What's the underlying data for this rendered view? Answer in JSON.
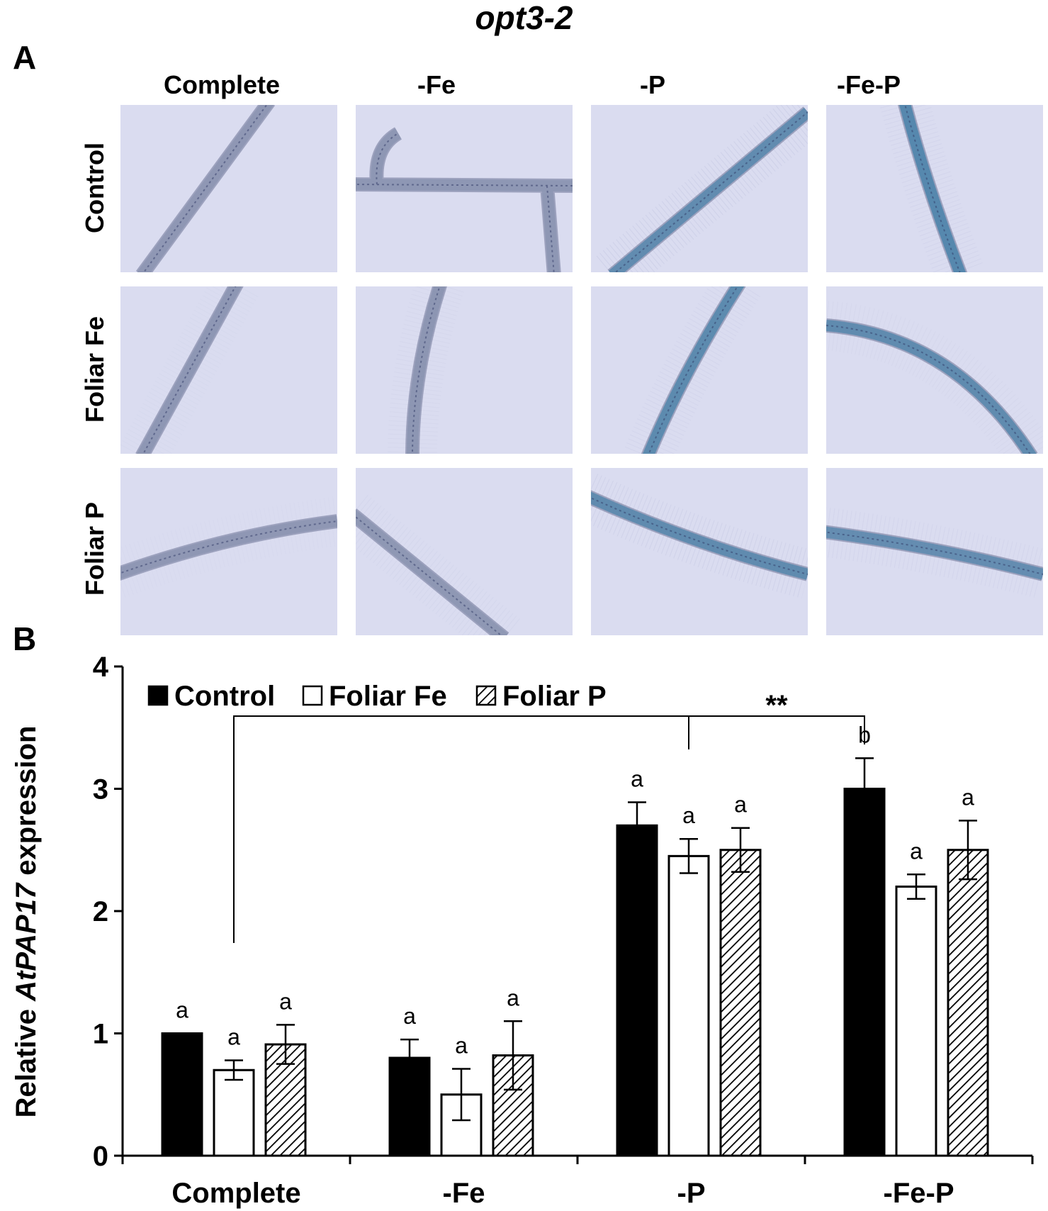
{
  "figure_title": "opt3-2",
  "panel_a": {
    "label": "A",
    "columns": [
      "Complete",
      "-Fe",
      "-P",
      "-Fe-P"
    ],
    "rows": [
      "Control",
      "Foliar Fe",
      "Foliar P"
    ],
    "stain_color": "#3f7fa8",
    "background_color": "#dadcf0"
  },
  "panel_b": {
    "label": "B"
  },
  "chart_data": {
    "type": "bar",
    "categories": [
      "Complete",
      "-Fe",
      "-P",
      "-Fe-P"
    ],
    "series": [
      {
        "name": "Control",
        "fill": "solid-black",
        "values": [
          1.0,
          0.8,
          2.7,
          3.0
        ],
        "errors": [
          0.0,
          0.15,
          0.19,
          0.25
        ],
        "letters": [
          "a",
          "a",
          "a",
          "b"
        ]
      },
      {
        "name": "Foliar Fe",
        "fill": "white",
        "values": [
          0.7,
          0.5,
          2.45,
          2.2
        ],
        "errors": [
          0.08,
          0.21,
          0.14,
          0.1
        ],
        "letters": [
          "a",
          "a",
          "a",
          "a"
        ]
      },
      {
        "name": "Foliar P",
        "fill": "diagonal-hatch",
        "values": [
          0.91,
          0.82,
          2.5,
          2.5
        ],
        "errors": [
          0.16,
          0.28,
          0.18,
          0.24
        ],
        "letters": [
          "a",
          "a",
          "a",
          "a"
        ]
      }
    ],
    "ylabel_prefix": "Relative ",
    "ylabel_gene": "AtPAP17",
    "ylabel_suffix": " expression",
    "ylim": [
      0,
      4
    ],
    "yticks": [
      0,
      1,
      2,
      3,
      4
    ],
    "grid": false,
    "legend_position": "top-left",
    "significance_annotation": "**"
  }
}
